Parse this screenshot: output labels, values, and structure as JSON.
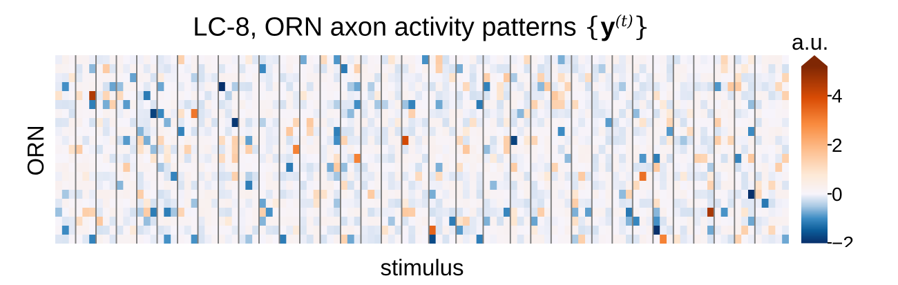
{
  "chart_data": {
    "type": "heatmap",
    "title_prefix": "LC-8, ORN axon activity patterns ",
    "title_bold_symbol": "y",
    "title_superscript": "(t)",
    "xlabel": "stimulus",
    "ylabel": "ORN",
    "colorbar": {
      "label": "a.u.",
      "range": [
        -2,
        5.2
      ],
      "extend": "max",
      "ticks": [
        4,
        2,
        0,
        -2
      ],
      "tick_labels": [
        "4",
        "2",
        "0",
        "−2"
      ],
      "colors": {
        "negative": "#08306b",
        "zero": "#f7f4fb",
        "positive": "#7f2704"
      }
    },
    "grid": {
      "rows": 21,
      "cols": 108,
      "stimulus_blocks": 34,
      "block_separators_after_columns": [
        3,
        6,
        9,
        12,
        15,
        18,
        21,
        24,
        27,
        30,
        33,
        36,
        39,
        42,
        45,
        48,
        51,
        55,
        59,
        63,
        67,
        70,
        73,
        76,
        79,
        82,
        85,
        88,
        91,
        94,
        97,
        100,
        103
      ],
      "separator_color": "#808080"
    },
    "annotated_peaks": [
      {
        "row": 4,
        "col": 5,
        "value": 4.5
      },
      {
        "row": 3,
        "col": 24,
        "value": -2.0
      },
      {
        "row": 6,
        "col": 20,
        "value": 3.2
      },
      {
        "row": 6,
        "col": 14,
        "value": -1.8
      },
      {
        "row": 7,
        "col": 26,
        "value": -1.9
      },
      {
        "row": 9,
        "col": 51,
        "value": 4.0
      },
      {
        "row": 9,
        "col": 67,
        "value": -1.8
      },
      {
        "row": 10,
        "col": 35,
        "value": 3.0
      },
      {
        "row": 11,
        "col": 44,
        "value": 3.0
      },
      {
        "row": 13,
        "col": 86,
        "value": 3.3
      },
      {
        "row": 15,
        "col": 102,
        "value": -2.0
      },
      {
        "row": 17,
        "col": 96,
        "value": 4.6
      },
      {
        "row": 19,
        "col": 55,
        "value": 3.5
      },
      {
        "row": 20,
        "col": 55,
        "value": -1.7
      },
      {
        "row": 19,
        "col": 88,
        "value": -2.0
      },
      {
        "row": 20,
        "col": 89,
        "value": 3.0
      }
    ]
  }
}
